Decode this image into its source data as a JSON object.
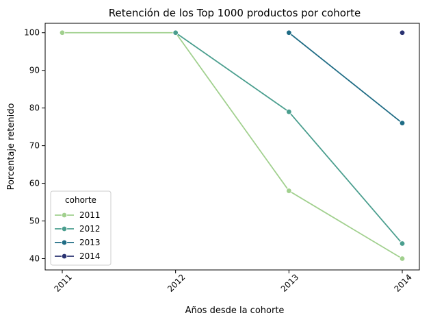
{
  "chart_data": {
    "type": "line",
    "title": "Retención de los Top 1000 productos por cohorte",
    "xlabel": "Años desde la cohorte",
    "ylabel": "Porcentaje retenido",
    "x": [
      "2011",
      "2012",
      "2013",
      "2014"
    ],
    "ylim": [
      37,
      102.5
    ],
    "yticks": [
      40,
      50,
      60,
      70,
      80,
      90,
      100
    ],
    "grid": false,
    "legend": {
      "title": "cohorte",
      "placement": "lower-left"
    },
    "series": [
      {
        "name": "2011",
        "color": "#a1d08e",
        "points": [
          [
            0,
            100
          ],
          [
            1,
            100
          ],
          [
            2,
            58
          ],
          [
            3,
            40
          ]
        ]
      },
      {
        "name": "2012",
        "color": "#4a9e8e",
        "points": [
          [
            1,
            100
          ],
          [
            2,
            79
          ],
          [
            3,
            44
          ]
        ]
      },
      {
        "name": "2013",
        "color": "#1f6c85",
        "points": [
          [
            2,
            100
          ],
          [
            3,
            76
          ]
        ]
      },
      {
        "name": "2014",
        "color": "#2a3271",
        "points": [
          [
            3,
            100
          ]
        ]
      }
    ]
  }
}
